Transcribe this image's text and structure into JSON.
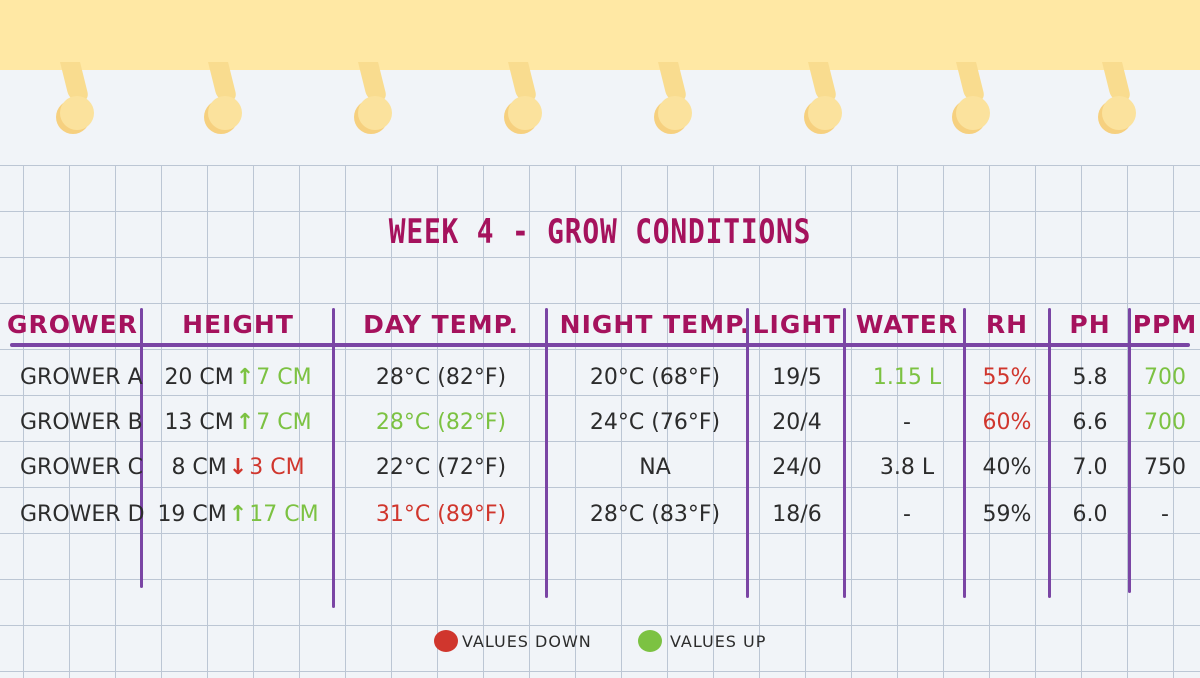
{
  "title": "WEEK 4 - GROW CONDITIONS",
  "colors": {
    "header": "#a5125d",
    "rule": "#7a45a4",
    "up": "#7cc242",
    "down": "#d0362d",
    "paper": "#f1f4f8",
    "band": "#ffe8a4"
  },
  "headers": [
    "GROWER",
    "HEIGHT",
    "DAY TEMP.",
    "NIGHT TEMP.",
    "LIGHT",
    "WATER",
    "RH",
    "PH",
    "PPM"
  ],
  "rows": [
    {
      "grower": "GROWER A",
      "height": "20 CM",
      "change_dir": "up",
      "change": "7 CM",
      "day_temp": "28°C (82°F)",
      "day_status": "",
      "night_temp": "20°C (68°F)",
      "light": "19/5",
      "water": "1.15 L",
      "water_status": "up",
      "rh": "55%",
      "rh_status": "down",
      "ph": "5.8",
      "ppm": "700",
      "ppm_status": "up"
    },
    {
      "grower": "GROWER B",
      "height": "13 CM",
      "change_dir": "up",
      "change": "7 CM",
      "day_temp": "28°C (82°F)",
      "day_status": "up",
      "night_temp": "24°C (76°F)",
      "light": "20/4",
      "water": "-",
      "water_status": "",
      "rh": "60%",
      "rh_status": "down",
      "ph": "6.6",
      "ppm": "700",
      "ppm_status": "up"
    },
    {
      "grower": "GROWER C",
      "height": "8 CM",
      "change_dir": "down",
      "change": "3 CM",
      "day_temp": "22°C (72°F)",
      "day_status": "",
      "night_temp": "NA",
      "light": "24/0",
      "water": "3.8 L",
      "water_status": "",
      "rh": "40%",
      "rh_status": "",
      "ph": "7.0",
      "ppm": "750",
      "ppm_status": ""
    },
    {
      "grower": "GROWER D",
      "height": "19 CM",
      "change_dir": "up",
      "change": "17 CM",
      "day_temp": "31°C (89°F)",
      "day_status": "down",
      "night_temp": "28°C (83°F)",
      "light": "18/6",
      "water": "-",
      "water_status": "",
      "rh": "59%",
      "rh_status": "",
      "ph": "6.0",
      "ppm": "-",
      "ppm_status": ""
    }
  ],
  "legend": [
    {
      "label": "VALUES DOWN",
      "color": "#d0362d"
    },
    {
      "label": "VALUES UP",
      "color": "#7cc242"
    }
  ]
}
